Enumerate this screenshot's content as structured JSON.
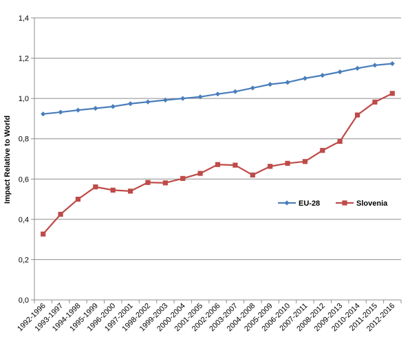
{
  "chart_data": {
    "type": "line",
    "title": "",
    "xlabel": "",
    "ylabel": "Impact Relative to World",
    "ylim": [
      0,
      1.4
    ],
    "yticks": [
      "0,0",
      "0,2",
      "0,4",
      "0,6",
      "0,8",
      "1,0",
      "1,2",
      "1,4"
    ],
    "grid": "horizontal",
    "legend_position": "right-middle",
    "categories": [
      "1992-1996",
      "1993-1997",
      "1994-1998",
      "1995-1999",
      "1996-2000",
      "1997-2001",
      "1998-2002",
      "1999-2003",
      "2000-2004",
      "2001-2005",
      "2002-2006",
      "2003-2007",
      "2004-2008",
      "2005-2009",
      "2006-2010",
      "2007-2011",
      "2008-2012",
      "2009-2013",
      "2010-2014",
      "2011-2015",
      "2012-2016"
    ],
    "series": [
      {
        "name": "EU-28",
        "color": "#4a7ebb",
        "marker": "diamond",
        "values": [
          0.923,
          0.932,
          0.942,
          0.951,
          0.96,
          0.974,
          0.983,
          0.992,
          1.0,
          1.008,
          1.022,
          1.034,
          1.052,
          1.07,
          1.08,
          1.1,
          1.115,
          1.132,
          1.15,
          1.165,
          1.173
        ]
      },
      {
        "name": "Slovenia",
        "color": "#be4b48",
        "marker": "square",
        "values": [
          0.327,
          0.425,
          0.5,
          0.561,
          0.545,
          0.54,
          0.583,
          0.581,
          0.603,
          0.628,
          0.672,
          0.669,
          0.62,
          0.663,
          0.678,
          0.687,
          0.742,
          0.787,
          0.918,
          0.982,
          1.025
        ]
      }
    ]
  }
}
